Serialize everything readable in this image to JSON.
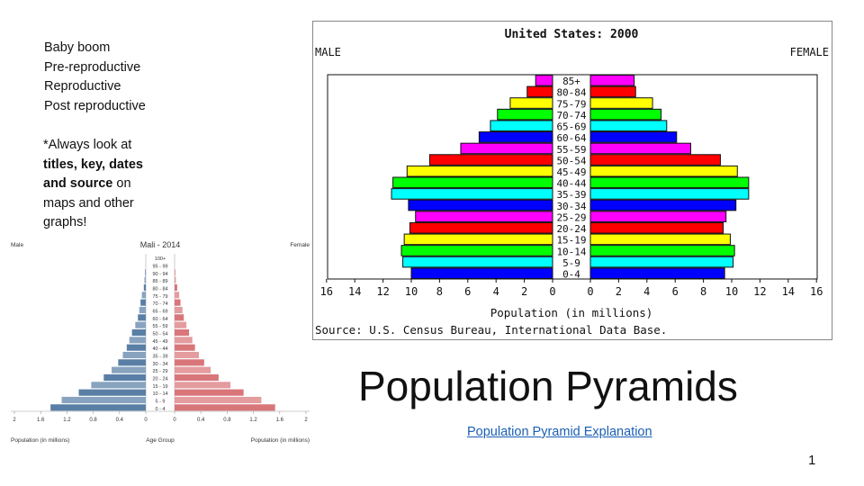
{
  "notes": {
    "lines": [
      "Baby boom",
      "Pre-reproductive",
      "Reproductive",
      "Post reproductive"
    ],
    "tip_lines": [
      {
        "pre": "*Always look at",
        "bold": "",
        "post": ""
      },
      {
        "pre": "",
        "bold": "titles, key, dates",
        "post": ""
      },
      {
        "pre": "",
        "bold": "and source",
        "post": " on"
      },
      {
        "pre": "maps and other",
        "bold": "",
        "post": ""
      },
      {
        "pre": "graphs!",
        "bold": "",
        "post": ""
      }
    ]
  },
  "slide": {
    "title": "Population Pyramids",
    "link_text": "Population Pyramid Explanation",
    "page_number": "1"
  },
  "chart_data": [
    {
      "type": "bar",
      "orientation": "horizontal-pyramid",
      "title": "United States: 2000",
      "left_label": "MALE",
      "right_label": "FEMALE",
      "xlabel": "Population (in millions)",
      "source": "Source: U.S. Census Bureau, International Data Base.",
      "xlim": [
        0,
        16
      ],
      "x_ticks_left": [
        "16",
        "14",
        "12",
        "10",
        "8",
        "6",
        "4",
        "2",
        "0"
      ],
      "x_ticks_right": [
        "0",
        "2",
        "4",
        "6",
        "8",
        "10",
        "12",
        "14",
        "16"
      ],
      "categories": [
        "85+",
        "80-84",
        "75-79",
        "70-74",
        "65-69",
        "60-64",
        "55-59",
        "50-54",
        "45-49",
        "40-44",
        "35-39",
        "30-34",
        "25-29",
        "20-24",
        "15-19",
        "10-14",
        "5-9",
        "0-4"
      ],
      "colors": [
        "#ff00ff",
        "#ff0000",
        "#ffff00",
        "#00ff00",
        "#00ffff",
        "#0000ff",
        "#ff00ff",
        "#ff0000",
        "#ffff00",
        "#00ff00",
        "#00ffff",
        "#0000ff",
        "#ff00ff",
        "#ff0000",
        "#ffff00",
        "#00ff00",
        "#00ffff",
        "#0000ff"
      ],
      "series": [
        {
          "name": "MALE",
          "values": [
            1.2,
            1.8,
            3.0,
            3.9,
            4.4,
            5.2,
            6.5,
            8.7,
            10.3,
            11.3,
            11.4,
            10.2,
            9.7,
            10.1,
            10.5,
            10.7,
            10.6,
            10.0
          ]
        },
        {
          "name": "FEMALE",
          "values": [
            3.1,
            3.2,
            4.4,
            5.0,
            5.4,
            6.1,
            7.1,
            9.2,
            10.4,
            11.2,
            11.2,
            10.3,
            9.6,
            9.4,
            9.9,
            10.2,
            10.1,
            9.5
          ]
        }
      ]
    },
    {
      "type": "bar",
      "orientation": "horizontal-pyramid",
      "title": "Mali - 2014",
      "left_label": "Male",
      "right_label": "Female",
      "xlabel_left": "Population (in millions)",
      "xlabel_center": "Age Group",
      "xlabel_right": "Population (in millions)",
      "xlim": [
        0,
        2
      ],
      "x_ticks_left": [
        "2",
        "1.6",
        "1.2",
        "0.8",
        "0.4",
        "0"
      ],
      "x_ticks_right": [
        "0",
        "0.4",
        "0.8",
        "1.2",
        "1.6",
        "2"
      ],
      "categories": [
        "100+",
        "95 - 99",
        "90 - 94",
        "85 - 89",
        "80 - 84",
        "75 - 79",
        "70 - 74",
        "65 - 69",
        "60 - 64",
        "55 - 59",
        "50 - 54",
        "45 - 49",
        "40 - 44",
        "35 - 39",
        "30 - 34",
        "25 - 29",
        "20 - 24",
        "15 - 19",
        "10 - 14",
        "5 - 9",
        "0 - 4"
      ],
      "male_color": "#5a7fa6",
      "female_color": "#d9767a",
      "series": [
        {
          "name": "Male",
          "values": [
            0.0,
            0.0,
            0.01,
            0.02,
            0.03,
            0.06,
            0.08,
            0.1,
            0.12,
            0.16,
            0.21,
            0.25,
            0.29,
            0.35,
            0.42,
            0.52,
            0.64,
            0.83,
            1.02,
            1.28,
            1.45
          ]
        },
        {
          "name": "Female",
          "values": [
            0.0,
            0.0,
            0.01,
            0.02,
            0.04,
            0.07,
            0.09,
            0.12,
            0.14,
            0.18,
            0.22,
            0.27,
            0.31,
            0.37,
            0.45,
            0.55,
            0.67,
            0.85,
            1.05,
            1.32,
            1.53
          ]
        }
      ]
    }
  ]
}
